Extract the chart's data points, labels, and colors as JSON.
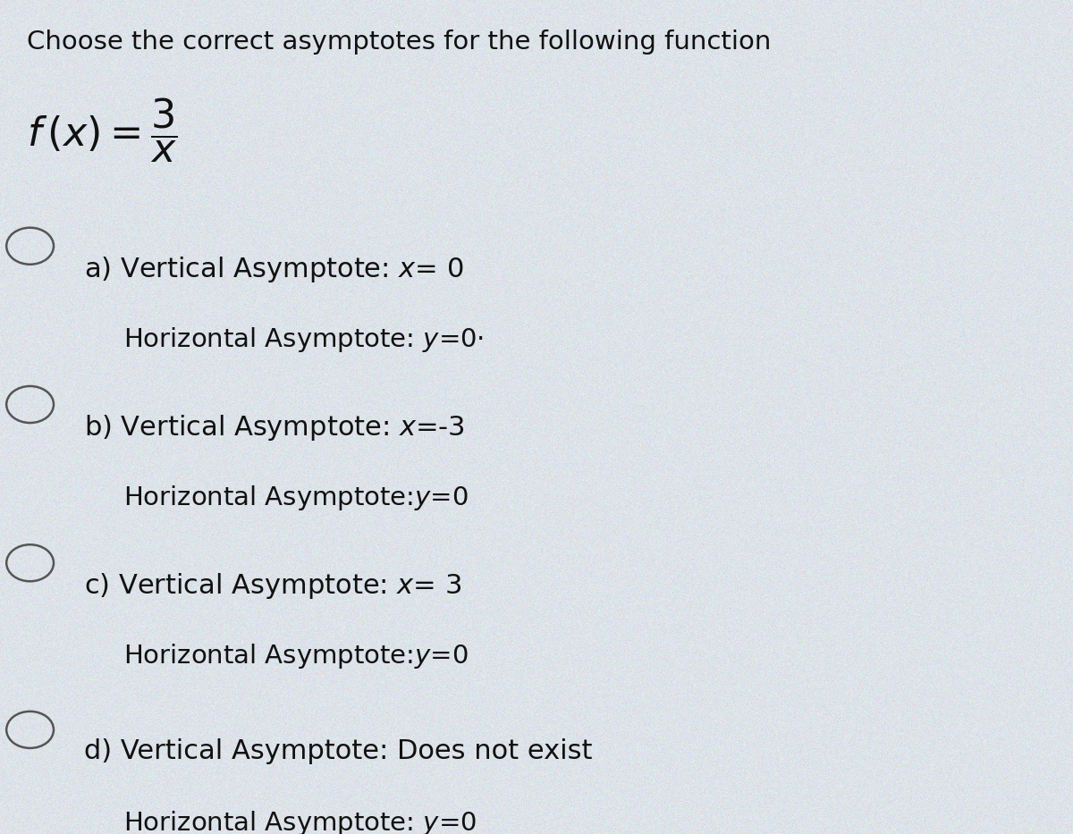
{
  "title": "Choose the correct asymptotes for the following function",
  "bg_color_base": "#dde3e9",
  "text_color": "#111111",
  "circle_color": "#555555",
  "title_fontsize": 21,
  "option_fontsize": 22,
  "sub_fontsize": 21,
  "func_fontsize": 32,
  "options": [
    {
      "letter": "a)",
      "line1_plain": "a) Vertical Asymptote: ",
      "line1_italic": "x",
      "line1_end": "= 0",
      "line2_plain": "Horizontal Asymptote: ",
      "line2_italic": "y",
      "line2_end": "=0·"
    },
    {
      "letter": "b)",
      "line1_plain": "b) Vertical Asymptote: ",
      "line1_italic": "x",
      "line1_end": "=-3",
      "line2_plain": "Horizontal Asymptote:",
      "line2_italic": "y",
      "line2_end": "=0"
    },
    {
      "letter": "c)",
      "line1_plain": "c) Vertical Asymptote: ",
      "line1_italic": "x",
      "line1_end": "= 3",
      "line2_plain": "Horizontal Asymptote:",
      "line2_italic": "y",
      "line2_end": "=0"
    },
    {
      "letter": "d)",
      "line1_plain": "d) Vertical Asymptote: Does not exist",
      "line1_italic": "",
      "line1_end": "",
      "line2_plain": "Horizontal Asymptote: ",
      "line2_italic": "y",
      "line2_end": "=0"
    }
  ]
}
